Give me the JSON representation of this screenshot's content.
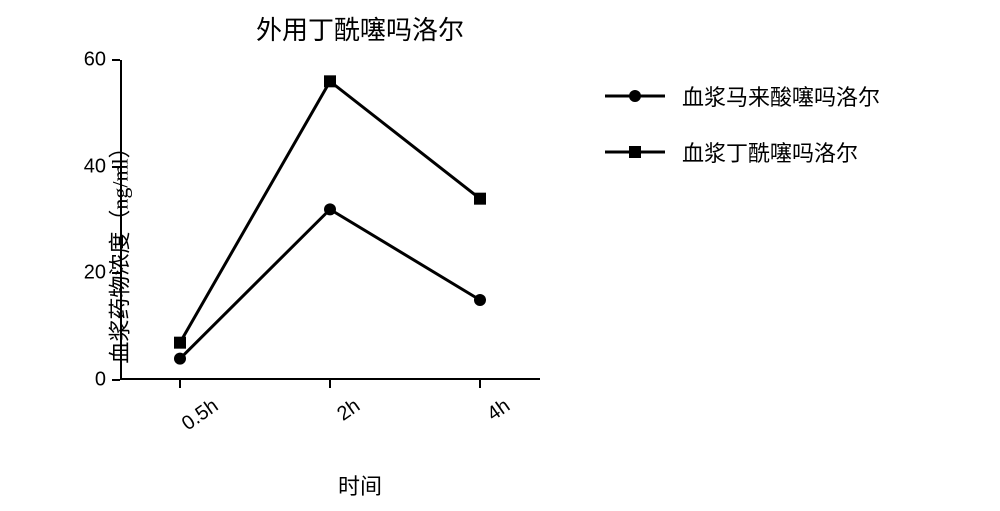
{
  "chart": {
    "type": "line",
    "title": "外用丁酰噻吗洛尔",
    "title_fontsize": 26,
    "xlabel": "时间",
    "ylabel": "血浆药物浓度（ng/ml）",
    "label_fontsize": 22,
    "xlim": [
      0,
      2
    ],
    "ylim": [
      0,
      60
    ],
    "ytick_step": 20,
    "yticks": [
      0,
      20,
      40,
      60
    ],
    "xticks": [
      "0.5h",
      "2h",
      "4h"
    ],
    "background_color": "#ffffff",
    "axis_color": "#000000",
    "line_width": 3,
    "marker_size": 6,
    "series": [
      {
        "name": "血浆马来酸噻吗洛尔",
        "marker": "circle",
        "color": "#000000",
        "values": [
          4,
          32,
          15
        ]
      },
      {
        "name": "血浆丁酰噻吗洛尔",
        "marker": "square",
        "color": "#000000",
        "values": [
          7,
          56,
          34
        ]
      }
    ]
  }
}
